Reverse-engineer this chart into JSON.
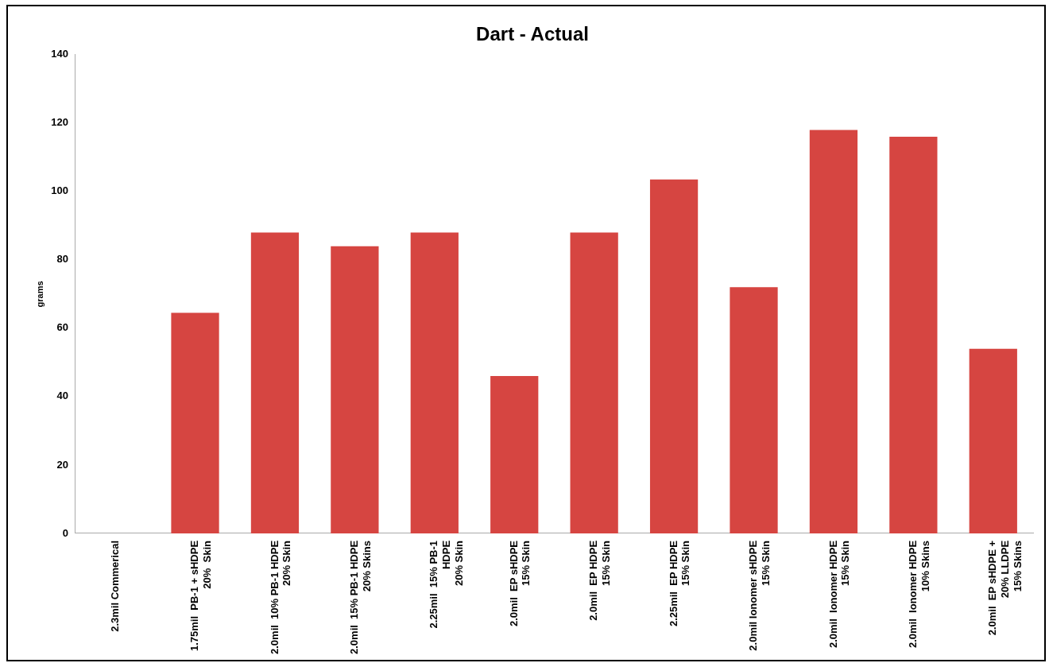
{
  "chart_data": {
    "type": "bar",
    "title": "Dart - Actual",
    "ylabel": "grams",
    "categories": [
      "2.3mil Commerical",
      "1.75mil  PB-1 + sHDPE\n20%  Skin",
      "2.0mil  10% PB-1 HDPE\n20% Skin",
      "2.0mil  15% PB-1 HDPE\n20% Skins",
      "2.25mil  15% PB-1\nHDPE\n20% Skin",
      "2.0mil  EP sHDPE\n15% Skin",
      "2.0mil  EP HDPE\n15% Skin",
      "2.25mil  EP HDPE\n15% Skin",
      "2.0mil Ionomer sHDPE\n15% Skin",
      "2.0mil  Ionomer HDPE\n15% Skin",
      "2.0mil  Ionomer HDPE\n10% Skins",
      "2.0mil  EP sHDPE +\n20% LLDPE\n15% Skins"
    ],
    "values": [
      null,
      64.5,
      88,
      84,
      88,
      46,
      88,
      103.5,
      72,
      118,
      116,
      54
    ],
    "color": "#d64541",
    "ylim": [
      0,
      140
    ],
    "yticks": [
      0,
      20,
      40,
      60,
      80,
      100,
      120,
      140
    ],
    "grid": false,
    "legend": false
  }
}
